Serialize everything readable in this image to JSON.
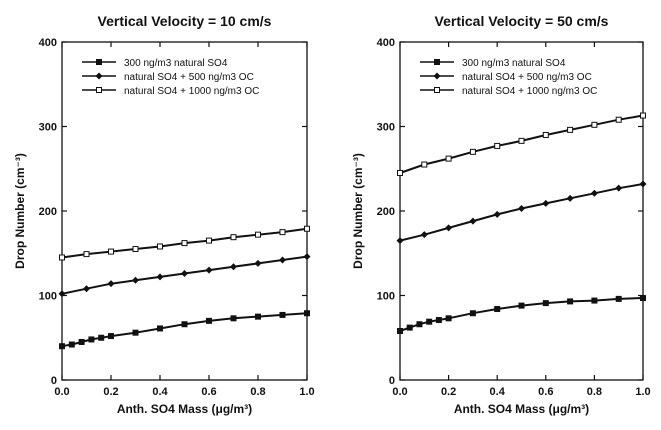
{
  "chart_data": [
    {
      "type": "line",
      "title": "Vertical Velocity = 10 cm/s",
      "xlabel": "Anth. SO4 Mass (μg/m³)",
      "ylabel": "Drop Number (cm⁻³)",
      "xlim": [
        0,
        1.0
      ],
      "ylim": [
        0,
        400
      ],
      "xticks": [
        "0.0",
        "0.2",
        "0.4",
        "0.6",
        "0.8",
        "1.0"
      ],
      "yticks": [
        "0",
        "100",
        "200",
        "300",
        "400"
      ],
      "grid": false,
      "legend_position": "top-left",
      "series": [
        {
          "name": "300 ng/m3 natural SO4",
          "marker": "square",
          "x": [
            0.0,
            0.04,
            0.08,
            0.12,
            0.16,
            0.2,
            0.3,
            0.4,
            0.5,
            0.6,
            0.7,
            0.8,
            0.9,
            1.0
          ],
          "y": [
            40,
            42,
            45,
            48,
            50,
            52,
            56,
            61,
            66,
            70,
            73,
            75,
            77,
            79
          ]
        },
        {
          "name": "natural SO4 + 500 ng/m3 OC",
          "marker": "diamond",
          "x": [
            0.0,
            0.1,
            0.2,
            0.3,
            0.4,
            0.5,
            0.6,
            0.7,
            0.8,
            0.9,
            1.0
          ],
          "y": [
            102,
            108,
            114,
            118,
            122,
            126,
            130,
            134,
            138,
            142,
            146
          ]
        },
        {
          "name": "natural SO4 + 1000 ng/m3 OC",
          "marker": "small-square",
          "x": [
            0.0,
            0.1,
            0.2,
            0.3,
            0.4,
            0.5,
            0.6,
            0.7,
            0.8,
            0.9,
            1.0
          ],
          "y": [
            145,
            149,
            152,
            155,
            158,
            162,
            165,
            169,
            172,
            175,
            179
          ]
        }
      ]
    },
    {
      "type": "line",
      "title": "Vertical Velocity = 50 cm/s",
      "xlabel": "Anth. SO4 Mass (μg/m³)",
      "ylabel": "Drop Number (cm⁻³)",
      "xlim": [
        0,
        1.0
      ],
      "ylim": [
        0,
        400
      ],
      "xticks": [
        "0.0",
        "0.2",
        "0.4",
        "0.6",
        "0.8",
        "1.0"
      ],
      "yticks": [
        "0",
        "100",
        "200",
        "300",
        "400"
      ],
      "grid": false,
      "legend_position": "top-left",
      "series": [
        {
          "name": "300 ng/m3 natural SO4",
          "marker": "square",
          "x": [
            0.0,
            0.04,
            0.08,
            0.12,
            0.16,
            0.2,
            0.3,
            0.4,
            0.5,
            0.6,
            0.7,
            0.8,
            0.9,
            1.0
          ],
          "y": [
            58,
            62,
            66,
            69,
            71,
            73,
            79,
            84,
            88,
            91,
            93,
            94,
            96,
            97
          ]
        },
        {
          "name": "natural SO4 + 500 ng/m3 OC",
          "marker": "diamond",
          "x": [
            0.0,
            0.1,
            0.2,
            0.3,
            0.4,
            0.5,
            0.6,
            0.7,
            0.8,
            0.9,
            1.0
          ],
          "y": [
            165,
            172,
            180,
            188,
            196,
            203,
            209,
            215,
            221,
            227,
            232
          ]
        },
        {
          "name": "natural SO4 + 1000 ng/m3 OC",
          "marker": "small-square",
          "x": [
            0.0,
            0.1,
            0.2,
            0.3,
            0.4,
            0.5,
            0.6,
            0.7,
            0.8,
            0.9,
            1.0
          ],
          "y": [
            245,
            255,
            262,
            270,
            277,
            283,
            290,
            296,
            302,
            308,
            313
          ]
        }
      ]
    }
  ]
}
